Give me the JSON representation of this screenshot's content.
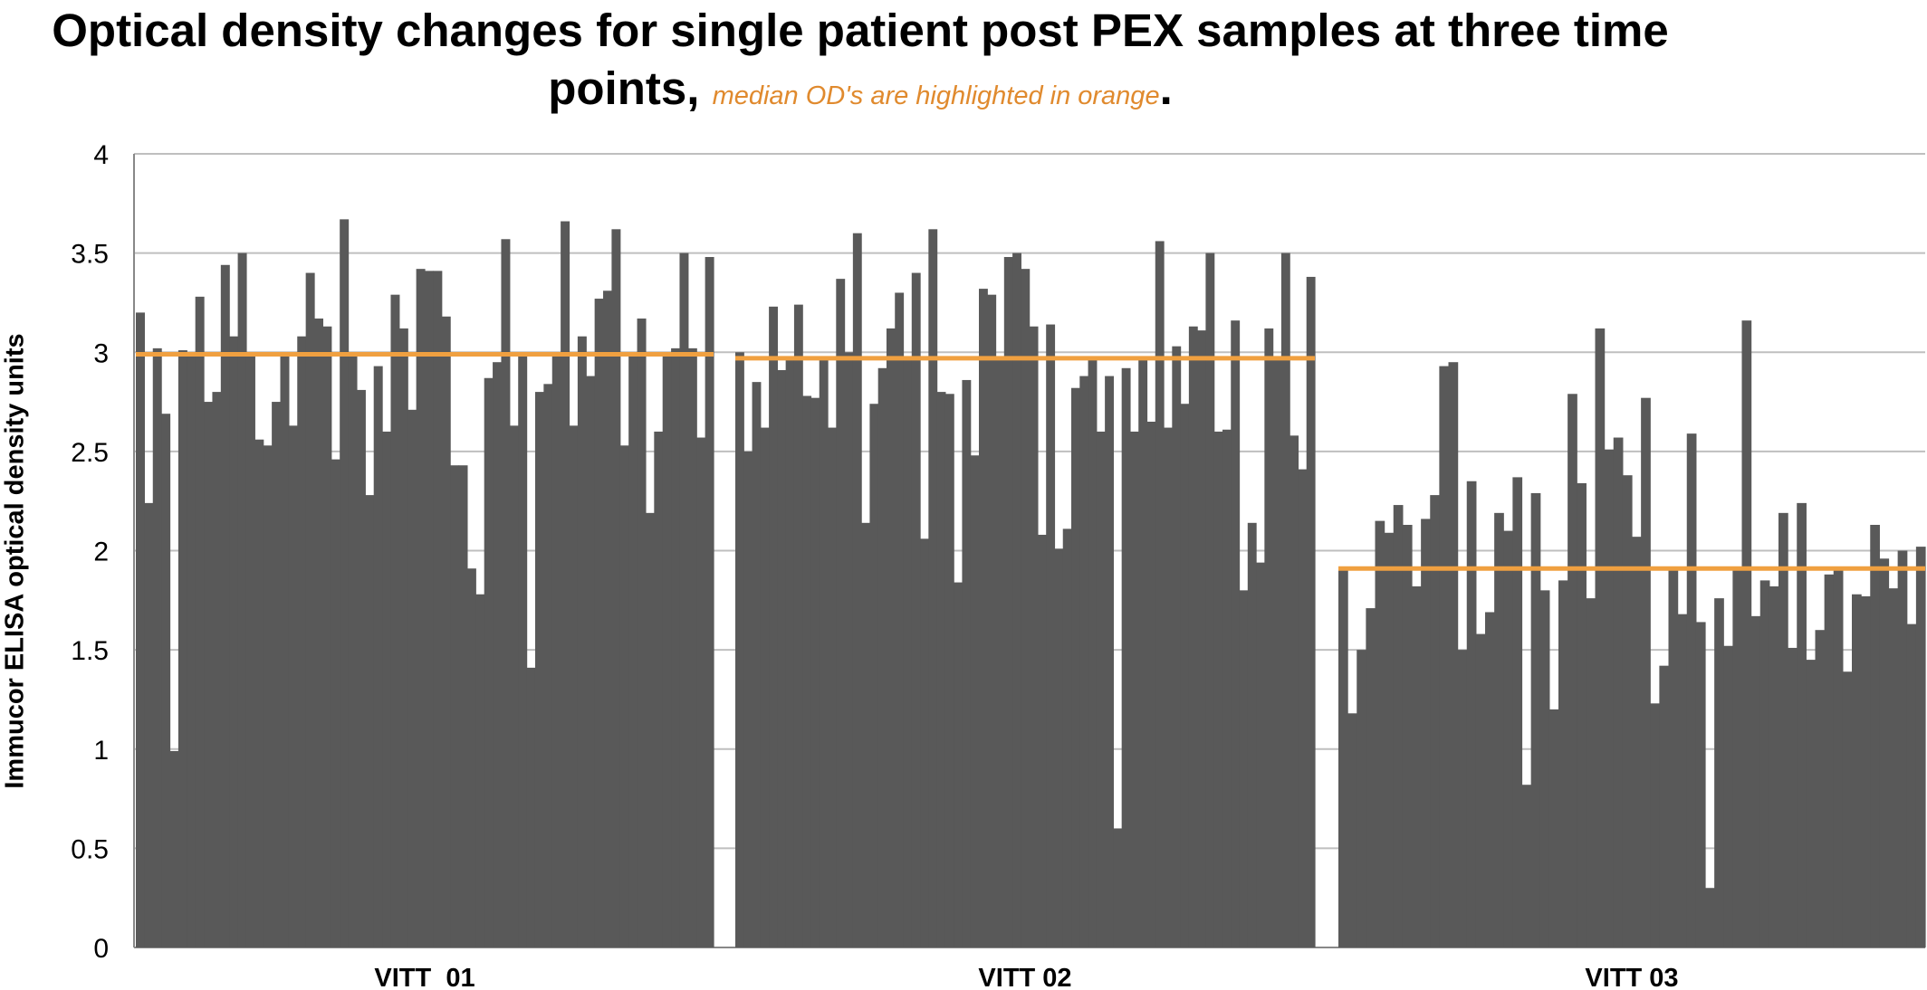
{
  "chart_data": {
    "type": "bar",
    "title": "Optical density changes for single patient post PEX  samples at three time points,",
    "title_note": "median OD's are highlighted in orange",
    "title_end": ".",
    "ylabel": "Immucor ELISA optical density units",
    "xlabel": "",
    "ylim": [
      0,
      4
    ],
    "yticks": [
      "0",
      "0.5",
      "1",
      "1.5",
      "2",
      "2.5",
      "3",
      "3.5",
      "4"
    ],
    "grid": true,
    "legend": "none",
    "colors": {
      "bar": "#595959",
      "median": "#f0a040",
      "grid": "#bfbfbf",
      "axis": "#888888"
    },
    "groups": [
      {
        "name": "VITT  01",
        "median": 2.99,
        "values": [
          3.2,
          2.24,
          3.02,
          2.69,
          0.99,
          3.01,
          2.98,
          3.28,
          2.75,
          2.8,
          3.44,
          3.08,
          3.5,
          2.98,
          2.56,
          2.53,
          2.75,
          2.98,
          2.63,
          3.08,
          3.4,
          3.17,
          3.13,
          2.46,
          3.67,
          2.98,
          2.81,
          2.28,
          2.93,
          2.6,
          3.29,
          3.12,
          2.71,
          3.42,
          3.41,
          3.41,
          3.18,
          2.43,
          2.43,
          1.91,
          1.78,
          2.87,
          2.95,
          3.57,
          2.63,
          2.98,
          1.41,
          2.8,
          2.84,
          3.0,
          3.66,
          2.63,
          3.08,
          2.88,
          3.27,
          3.31,
          3.62,
          2.53,
          2.98,
          3.17,
          2.19,
          2.6,
          2.98,
          3.02,
          3.5,
          3.02,
          2.57,
          3.48
        ]
      },
      {
        "name": "VITT 02",
        "median": 2.97,
        "values": [
          3.0,
          2.5,
          2.85,
          2.62,
          3.23,
          2.91,
          2.98,
          3.24,
          2.78,
          2.77,
          2.98,
          2.62,
          3.37,
          3.0,
          3.6,
          2.14,
          2.74,
          2.92,
          3.12,
          3.3,
          2.98,
          3.4,
          2.06,
          3.62,
          2.8,
          2.79,
          1.84,
          2.86,
          2.48,
          3.32,
          3.29,
          2.98,
          3.48,
          3.5,
          3.42,
          3.13,
          2.08,
          3.14,
          2.01,
          2.11,
          2.82,
          2.88,
          2.96,
          2.6,
          2.88,
          0.6,
          2.92,
          2.6,
          2.98,
          2.65,
          3.56,
          2.62,
          3.03,
          2.74,
          3.13,
          3.11,
          3.5,
          2.6,
          2.61,
          3.16,
          1.8,
          2.14,
          1.94,
          3.12,
          2.96,
          3.5,
          2.58,
          2.41,
          3.38
        ]
      },
      {
        "name": "VITT 03",
        "median": 1.91,
        "values": [
          1.91,
          1.18,
          1.5,
          1.71,
          2.15,
          2.09,
          2.23,
          2.13,
          1.82,
          2.16,
          2.28,
          2.93,
          2.95,
          1.5,
          2.35,
          1.58,
          1.69,
          2.19,
          2.1,
          2.37,
          0.82,
          2.29,
          1.8,
          1.2,
          1.85,
          2.79,
          2.34,
          1.76,
          3.12,
          2.51,
          2.57,
          2.38,
          2.07,
          2.77,
          1.23,
          1.42,
          1.91,
          1.68,
          2.59,
          1.64,
          0.3,
          1.76,
          1.52,
          1.92,
          3.16,
          1.67,
          1.85,
          1.82,
          2.19,
          1.51,
          2.24,
          1.45,
          1.6,
          1.88,
          1.91,
          1.39,
          1.78,
          1.77,
          2.13,
          1.96,
          1.81,
          2.0,
          1.63,
          2.02
        ]
      }
    ]
  }
}
